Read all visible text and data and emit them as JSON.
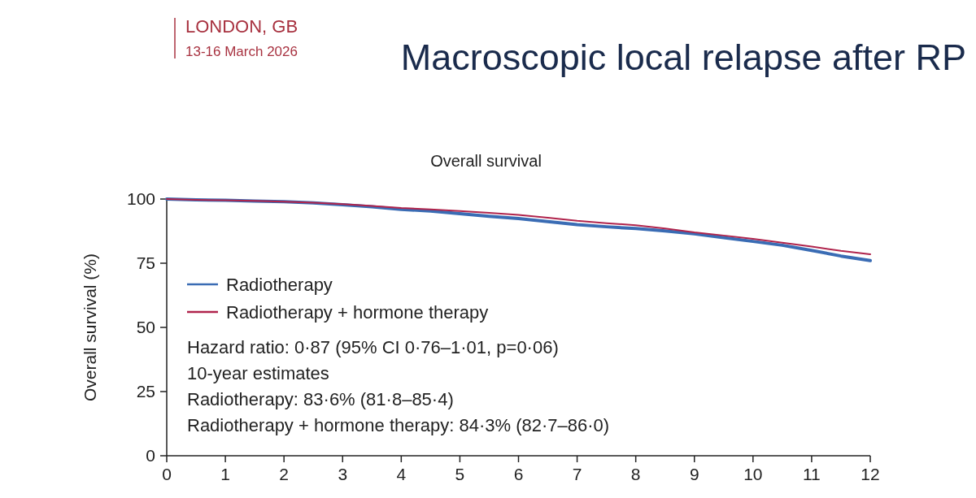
{
  "chart_data": {
    "type": "line",
    "title": "Macroscopic local relapse after RP",
    "subtitle": "Overall survival",
    "ylabel": "Overall survival (%)",
    "xlim": [
      0,
      12
    ],
    "xticks": [
      0,
      1,
      2,
      3,
      4,
      5,
      6,
      7,
      8,
      9,
      10,
      11,
      12
    ],
    "ylim": [
      0,
      100
    ],
    "yticks": [
      0,
      25,
      50,
      75,
      100
    ],
    "grid": false,
    "legend": "left",
    "marker": "none",
    "line_style": "solid",
    "series": [
      {
        "name": "Radiotherapy",
        "color": "#3a6cb4",
        "x": [
          0,
          0.5,
          1,
          1.5,
          2,
          2.5,
          3,
          3.5,
          4,
          4.5,
          5,
          5.5,
          6,
          6.5,
          7,
          7.5,
          8,
          8.5,
          9,
          9.5,
          10,
          10.5,
          11,
          11.5,
          12
        ],
        "values": [
          100,
          99.7,
          99.5,
          99.2,
          99,
          98.5,
          97.8,
          97,
          96,
          95.3,
          94.3,
          93.3,
          92.4,
          91.2,
          90,
          89.2,
          88.5,
          87.6,
          86.5,
          85,
          83.5,
          82,
          80,
          77.8,
          76
        ]
      },
      {
        "name": "Radiotherapy + hormone therapy",
        "color": "#b0244c",
        "x": [
          0,
          0.5,
          1,
          1.5,
          2,
          2.5,
          3,
          3.5,
          4,
          4.5,
          5,
          5.5,
          6,
          6.5,
          7,
          7.5,
          8,
          8.5,
          9,
          9.5,
          10,
          10.5,
          11,
          11.5,
          12
        ],
        "values": [
          100,
          99.7,
          99.5,
          99.3,
          99,
          98.6,
          98,
          97.3,
          96.5,
          96,
          95.3,
          94.6,
          93.8,
          92.7,
          91.5,
          90.6,
          89.8,
          88.5,
          87,
          85.8,
          84.5,
          83,
          81.5,
          79.8,
          78.5
        ]
      }
    ],
    "annotations": [
      "LONDON, GB",
      "13-16 March 2026",
      "Hazard ratio: 0·87 (95% CI 0·76–1·01, p=0·06)",
      "10-year estimates",
      "Radiotherapy: 83·6% (81·8–85·4)",
      "Radiotherapy + hormone therapy: 84·3% (82·7–86·0)"
    ]
  }
}
